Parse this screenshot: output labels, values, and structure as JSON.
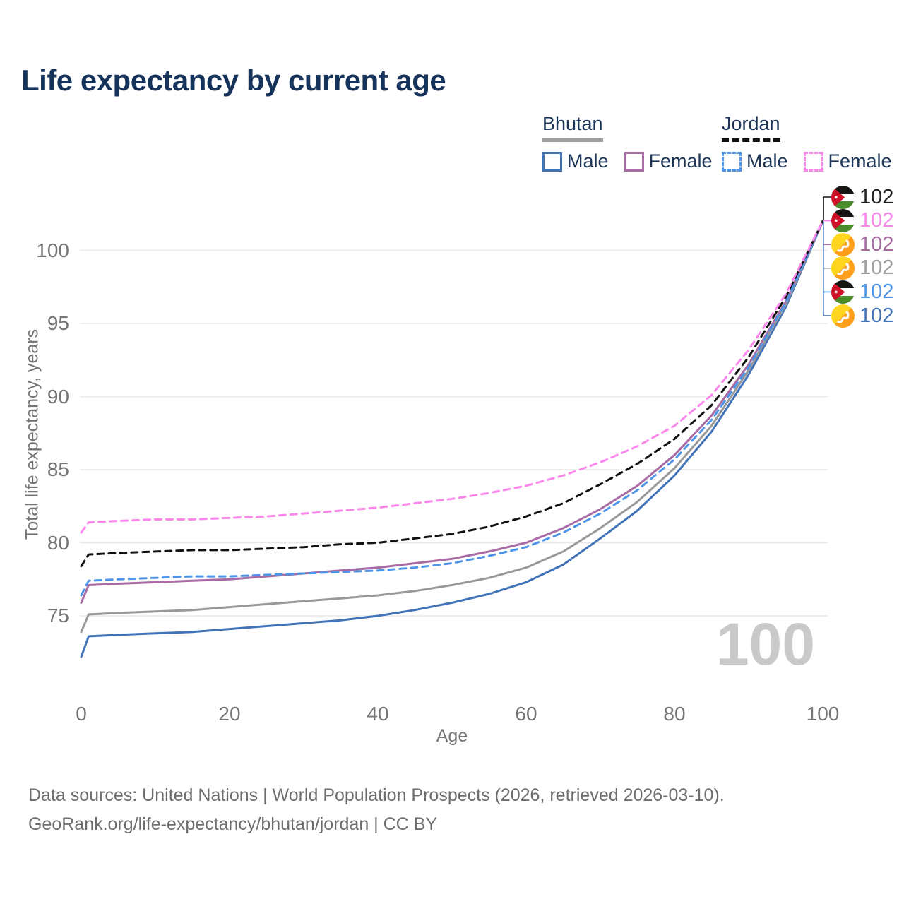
{
  "title": "Life expectancy by current age",
  "legend": {
    "groups": [
      {
        "country": "Bhutan",
        "line_style": "solid",
        "underline_color": "#9e9e9e",
        "items": [
          {
            "label": "Male",
            "color": "#4273b8",
            "dashed": false
          },
          {
            "label": "Female",
            "color": "#a86ba3",
            "dashed": false
          }
        ]
      },
      {
        "country": "Jordan",
        "line_style": "dashed",
        "underline_color": "#111111",
        "items": [
          {
            "label": "Male",
            "color": "#4e95e8",
            "dashed": true
          },
          {
            "label": "Female",
            "color": "#fb87ea",
            "dashed": true
          }
        ]
      }
    ]
  },
  "y_axis": {
    "title": "Total life expectancy, years",
    "ticks": [
      100,
      95,
      90,
      85,
      80,
      75
    ],
    "range": [
      71.5,
      103
    ]
  },
  "x_axis": {
    "title": "Age",
    "ticks": [
      0,
      20,
      40,
      60,
      80,
      100
    ],
    "range": [
      0,
      100
    ]
  },
  "watermark": "100",
  "end_labels": [
    {
      "series": "Jordan",
      "flag": "jordan",
      "value": "102",
      "color": "#222222"
    },
    {
      "series": "Jordan Female",
      "flag": "jordan",
      "value": "102",
      "color": "#fb87ea"
    },
    {
      "series": "Bhutan Female",
      "flag": "bhutan",
      "value": "102",
      "color": "#a56ba0"
    },
    {
      "series": "Bhutan",
      "flag": "bhutan",
      "value": "102",
      "color": "#9e9e9e"
    },
    {
      "series": "Jordan Male",
      "flag": "jordan",
      "value": "102",
      "color": "#4e95e8"
    },
    {
      "series": "Bhutan Male",
      "flag": "bhutan",
      "value": "102",
      "color": "#4574b4"
    }
  ],
  "footer": {
    "line1": "Data sources: United Nations | World Population Prospects (2026, retrieved 2026-03-10).",
    "line2": "GeoRank.org/life-expectancy/bhutan/jordan | CC BY"
  },
  "chart_data": {
    "type": "line",
    "title": "Life expectancy by current age",
    "xlabel": "Age",
    "ylabel": "Total life expectancy, years",
    "xlim": [
      0,
      100
    ],
    "ylim": [
      71.5,
      103
    ],
    "grid": "horizontal",
    "legend_position": "top-right",
    "x": [
      0,
      1,
      5,
      10,
      15,
      20,
      25,
      30,
      35,
      40,
      45,
      50,
      55,
      60,
      65,
      70,
      75,
      80,
      85,
      90,
      95,
      100
    ],
    "series": [
      {
        "name": "Bhutan Male",
        "color": "#4273b8",
        "dashed": false,
        "values": [
          72.2,
          73.6,
          73.7,
          73.8,
          73.9,
          74.1,
          74.3,
          74.5,
          74.7,
          75.0,
          75.4,
          75.9,
          76.5,
          77.3,
          78.5,
          80.3,
          82.2,
          84.6,
          87.6,
          91.5,
          96.1,
          102
        ]
      },
      {
        "name": "Bhutan",
        "color": "#999999",
        "dashed": false,
        "values": [
          73.9,
          75.1,
          75.2,
          75.3,
          75.4,
          75.6,
          75.8,
          76.0,
          76.2,
          76.4,
          76.7,
          77.1,
          77.6,
          78.3,
          79.4,
          81.0,
          82.8,
          85.1,
          88.0,
          91.8,
          96.3,
          102
        ]
      },
      {
        "name": "Bhutan Female",
        "color": "#a86ba3",
        "dashed": false,
        "values": [
          75.9,
          77.1,
          77.2,
          77.3,
          77.4,
          77.5,
          77.7,
          77.9,
          78.1,
          78.3,
          78.6,
          78.9,
          79.4,
          80.0,
          81.0,
          82.3,
          83.9,
          86.0,
          88.7,
          92.2,
          96.5,
          102
        ]
      },
      {
        "name": "Jordan Male",
        "color": "#4e95e8",
        "dashed": true,
        "values": [
          76.4,
          77.4,
          77.5,
          77.6,
          77.7,
          77.7,
          77.8,
          77.9,
          78.0,
          78.1,
          78.3,
          78.6,
          79.1,
          79.7,
          80.7,
          82.0,
          83.6,
          85.7,
          88.4,
          92.0,
          96.4,
          102
        ]
      },
      {
        "name": "Jordan",
        "color": "#111111",
        "dashed": true,
        "values": [
          78.4,
          79.2,
          79.3,
          79.4,
          79.5,
          79.5,
          79.6,
          79.7,
          79.9,
          80.0,
          80.3,
          80.6,
          81.1,
          81.8,
          82.7,
          84.0,
          85.4,
          87.1,
          89.4,
          92.7,
          96.8,
          102
        ]
      },
      {
        "name": "Jordan Female",
        "color": "#fb87ea",
        "dashed": true,
        "values": [
          80.7,
          81.4,
          81.5,
          81.6,
          81.6,
          81.7,
          81.8,
          82.0,
          82.2,
          82.4,
          82.7,
          83.0,
          83.4,
          83.9,
          84.6,
          85.5,
          86.6,
          88.0,
          90.1,
          93.2,
          97.0,
          102
        ]
      }
    ],
    "end_annotation_value": 102,
    "colors": {
      "grid": "#e8e8e8",
      "tick_text": "#757575",
      "connector_upper": "#111111",
      "connector_lower": "#5b8dd9"
    }
  }
}
